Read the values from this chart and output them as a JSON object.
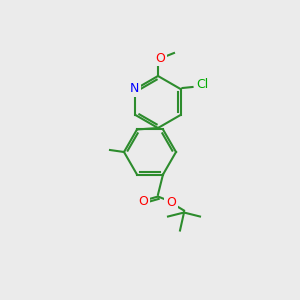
{
  "bg_color": "#ebebeb",
  "bond_color": "#2d8c2d",
  "bond_width": 1.5,
  "atom_colors": {
    "N": "#0000ff",
    "O": "#ff0000",
    "Cl": "#00aa00",
    "C": "#2d8c2d"
  },
  "font_size": 9,
  "font_size_small": 8
}
